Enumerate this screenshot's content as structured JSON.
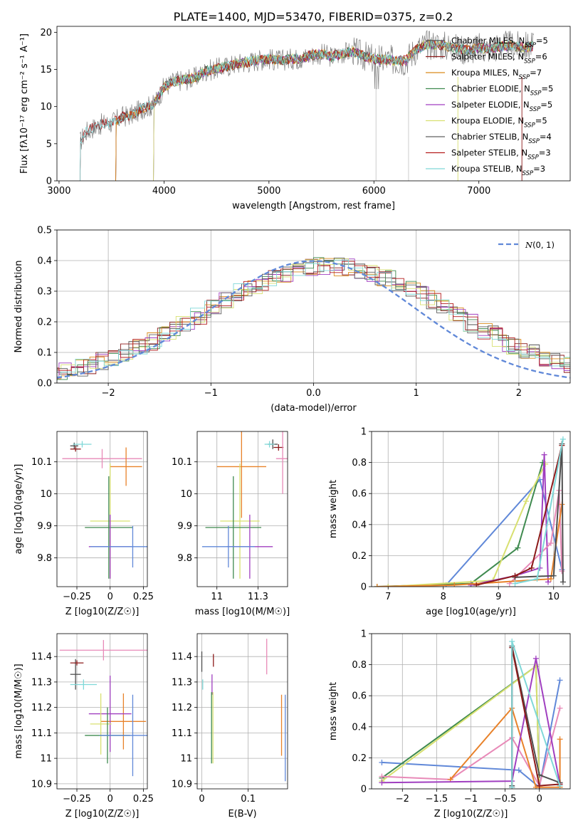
{
  "figure_title": "PLATE=1400, MJD=53470, FIBERID=0375, z=0.2",
  "colors": {
    "Chabrier MILES": "#4f4f4f",
    "Salpeter MILES": "#8c1a1a",
    "Kroupa MILES": "#d98a1a",
    "Chabrier ELODIE": "#3f8a4f",
    "Salpeter ELODIE": "#a03fc0",
    "Kroupa ELODIE": "#d8e070",
    "Chabrier STELIB": "#606060",
    "Salpeter STELIB": "#b51e1e",
    "Kroupa STELIB": "#7fd8d8",
    "blue": "#6088d8",
    "orange": "#e8822a",
    "pink": "#e88ab8",
    "spectrum": "#808080"
  },
  "chart_data": [
    {
      "id": "spectrum",
      "type": "line",
      "title": "PLATE=1400, MJD=53470, FIBERID=0375, z=0.2",
      "xlabel": "wavelength [Angstrom, rest frame]",
      "ylabel": "Flux [fλ10⁻¹⁷ erg cm⁻² s⁻¹ A⁻¹]",
      "xlim": [
        2980,
        7870
      ],
      "ylim": [
        0,
        20.8
      ],
      "xticks": [
        3000,
        4000,
        5000,
        6000,
        7000
      ],
      "yticks": [
        0,
        5,
        10,
        15,
        20
      ],
      "grid": false,
      "legend_position": "right",
      "model_continuum": [
        [
          3200,
          5.2
        ],
        [
          3250,
          6.5
        ],
        [
          3300,
          7.0
        ],
        [
          3400,
          7.6
        ],
        [
          3500,
          7.8
        ],
        [
          3600,
          8.6
        ],
        [
          3700,
          8.9
        ],
        [
          3800,
          9.8
        ],
        [
          3900,
          10.2
        ],
        [
          4000,
          12.6
        ],
        [
          4100,
          13.4
        ],
        [
          4200,
          13.6
        ],
        [
          4300,
          13.9
        ],
        [
          4400,
          14.8
        ],
        [
          4500,
          15.1
        ],
        [
          4600,
          15.4
        ],
        [
          4700,
          15.8
        ],
        [
          4800,
          16.0
        ],
        [
          4900,
          16.3
        ],
        [
          5000,
          16.4
        ],
        [
          5100,
          16.2
        ],
        [
          5200,
          16.4
        ],
        [
          5300,
          16.5
        ],
        [
          5400,
          16.9
        ],
        [
          5500,
          17.1
        ],
        [
          5600,
          16.7
        ],
        [
          5700,
          17.2
        ],
        [
          5800,
          17.4
        ],
        [
          5900,
          16.8
        ],
        [
          6000,
          16.4
        ],
        [
          6100,
          16.3
        ],
        [
          6200,
          16.2
        ],
        [
          6300,
          16.2
        ],
        [
          6400,
          17.7
        ],
        [
          6500,
          18.3
        ],
        [
          6600,
          18.4
        ],
        [
          6700,
          18.1
        ],
        [
          6800,
          17.8
        ],
        [
          6900,
          17.6
        ],
        [
          7000,
          17.9
        ],
        [
          7100,
          17.8
        ],
        [
          7200,
          18.1
        ],
        [
          7300,
          18.2
        ],
        [
          7400,
          18.0
        ],
        [
          7500,
          18.1
        ]
      ],
      "model_start": [
        {
          "name": "Chabrier MILES",
          "start": 3540
        },
        {
          "name": "Salpeter MILES",
          "start": 3540
        },
        {
          "name": "Kroupa MILES",
          "start": 3540
        },
        {
          "name": "Chabrier ELODIE",
          "start": 3900
        },
        {
          "name": "Salpeter ELODIE",
          "start": 3900
        },
        {
          "name": "Kroupa ELODIE",
          "start": 3900
        },
        {
          "name": "Chabrier STELIB",
          "start": 3200
        },
        {
          "name": "Salpeter STELIB",
          "start": 3200
        },
        {
          "name": "Kroupa STELIB",
          "start": 3200
        }
      ],
      "legend": [
        {
          "name": "Chabrier MILES",
          "label": "Chabrier MILES, N",
          "sub": "SSP",
          "tail": "=5"
        },
        {
          "name": "Salpeter MILES",
          "label": "Salpeter MILES, N",
          "sub": "SSP",
          "tail": "=6"
        },
        {
          "name": "Kroupa MILES",
          "label": "Kroupa MILES, N",
          "sub": "SSP",
          "tail": "=7"
        },
        {
          "name": "Chabrier ELODIE",
          "label": "Chabrier ELODIE, N",
          "sub": "SSP",
          "tail": "=5"
        },
        {
          "name": "Salpeter ELODIE",
          "label": "Salpeter ELODIE, N",
          "sub": "SSP",
          "tail": "=5"
        },
        {
          "name": "Kroupa ELODIE",
          "label": "Kroupa ELODIE, N",
          "sub": "SSP",
          "tail": "=5"
        },
        {
          "name": "Chabrier STELIB",
          "label": "Chabrier STELIB, N",
          "sub": "SSP",
          "tail": "=4"
        },
        {
          "name": "Salpeter STELIB",
          "label": "Salpeter STELIB, N",
          "sub": "SSP",
          "tail": "=3"
        },
        {
          "name": "Kroupa STELIB",
          "label": "Kroupa STELIB, N",
          "sub": "SSP",
          "tail": "=3"
        }
      ]
    },
    {
      "id": "residuals",
      "type": "line",
      "xlabel": "(data-model)/error",
      "ylabel": "Normed distribution",
      "xlim": [
        -2.5,
        2.5
      ],
      "ylim": [
        0,
        0.5
      ],
      "xticks": [
        -2,
        -1,
        0,
        1,
        2
      ],
      "yticks": [
        0.0,
        0.1,
        0.2,
        0.3,
        0.4,
        0.5
      ],
      "grid": true,
      "legend": [
        {
          "label": "N(0,1)",
          "name": "gaussian",
          "style": "dashed"
        }
      ],
      "legend_position": "top-right",
      "gaussian": {
        "mean": 0,
        "sigma": 1
      }
    },
    {
      "id": "age_vs_Z",
      "type": "scatter",
      "xlabel": "Z [log10(Z/Z☉)]",
      "ylabel": "age [log10(age/yr)]",
      "xlim": [
        -0.4,
        0.28
      ],
      "ylim": [
        9.71,
        10.195
      ],
      "xticks": [
        -0.25,
        0.0,
        0.25
      ],
      "yticks": [
        9.8,
        9.9,
        10.0,
        10.1
      ],
      "grid": true,
      "points": [
        {
          "name": "Chabrier MILES",
          "x": -0.27,
          "y": 10.15,
          "xerr": 0.03,
          "yerr": 0.01
        },
        {
          "name": "Salpeter MILES",
          "x": -0.26,
          "y": 10.14,
          "xerr": 0.04,
          "yerr": 0.008
        },
        {
          "name": "Kroupa STELIB",
          "x": -0.21,
          "y": 10.155,
          "xerr": 0.07,
          "yerr": 0.01
        },
        {
          "name": "pink",
          "x": -0.06,
          "y": 10.11,
          "xerr": 0.3,
          "yerr": 0.03
        },
        {
          "name": "orange",
          "x": 0.12,
          "y": 10.085,
          "xerr": 0.12,
          "yerr": 0.06
        },
        {
          "name": "Kroupa ELODIE",
          "x": 0.0,
          "y": 9.915,
          "xerr": 0.15,
          "yerr": 0.18
        },
        {
          "name": "Chabrier ELODIE",
          "x": -0.01,
          "y": 9.895,
          "xerr": 0.18,
          "yerr": 0.16
        },
        {
          "name": "Salpeter ELODIE",
          "x": 0.0,
          "y": 9.835,
          "xerr": 0.16,
          "yerr": 0.1
        },
        {
          "name": "blue",
          "x": 0.17,
          "y": 9.835,
          "xerr": 0.32,
          "yerr": 0.065
        }
      ]
    },
    {
      "id": "age_vs_mass",
      "type": "scatter",
      "xlabel": "mass [log10(M/M☉)]",
      "ylabel": "",
      "xlim": [
        10.88,
        11.43
      ],
      "ylim": [
        9.71,
        10.195
      ],
      "xticks": [
        11.0,
        11.25
      ],
      "yticks": [
        9.8,
        9.9,
        10.0,
        10.1
      ],
      "grid": true,
      "points": [
        {
          "name": "Chabrier MILES",
          "x": 11.34,
          "y": 10.155,
          "xerr": 0.03,
          "yerr": 0.015
        },
        {
          "name": "Salpeter MILES",
          "x": 11.375,
          "y": 10.145,
          "xerr": 0.03,
          "yerr": 0.01
        },
        {
          "name": "Kroupa STELIB",
          "x": 11.32,
          "y": 10.155,
          "xerr": 0.03,
          "yerr": 0.01
        },
        {
          "name": "pink",
          "x": 11.4,
          "y": 10.11,
          "xerr": 0.04,
          "yerr": 0.11
        },
        {
          "name": "orange",
          "x": 11.15,
          "y": 10.085,
          "xerr": 0.15,
          "yerr": 0.16
        },
        {
          "name": "Kroupa ELODIE",
          "x": 11.14,
          "y": 9.915,
          "xerr": 0.12,
          "yerr": 0.18
        },
        {
          "name": "Chabrier ELODIE",
          "x": 11.1,
          "y": 9.895,
          "xerr": 0.17,
          "yerr": 0.16
        },
        {
          "name": "Salpeter ELODIE",
          "x": 11.2,
          "y": 9.835,
          "xerr": 0.14,
          "yerr": 0.1
        },
        {
          "name": "blue",
          "x": 11.07,
          "y": 9.835,
          "xerr": 0.16,
          "yerr": 0.065
        }
      ]
    },
    {
      "id": "weights_vs_age",
      "type": "line",
      "xlabel": "age [log10(age/yr)]",
      "ylabel": "mass weight",
      "xlim": [
        6.7,
        10.3
      ],
      "ylim": [
        0,
        1.0
      ],
      "xticks": [
        7,
        8,
        9,
        10
      ],
      "yticks": [
        0.0,
        0.2,
        0.4,
        0.6,
        0.8,
        1.0
      ],
      "grid": true,
      "series": [
        {
          "name": "blue",
          "x": [
            7.0,
            8.05,
            9.75,
            10.15
          ],
          "y": [
            0.0,
            0.01,
            0.69,
            0.11
          ]
        },
        {
          "name": "Chabrier ELODIE",
          "x": [
            6.8,
            8.5,
            9.35,
            9.8
          ],
          "y": [
            0.0,
            0.02,
            0.25,
            0.8
          ]
        },
        {
          "name": "Kroupa ELODIE",
          "x": [
            7.0,
            8.9,
            9.5,
            9.85
          ],
          "y": [
            0.0,
            0.04,
            0.55,
            0.79
          ]
        },
        {
          "name": "Salpeter ELODIE",
          "x": [
            8.5,
            9.3,
            9.75,
            9.83,
            9.9
          ],
          "y": [
            0.01,
            0.07,
            0.12,
            0.85,
            0.03
          ]
        },
        {
          "name": "pink",
          "x": [
            9.2,
            9.95,
            10.1,
            10.15
          ],
          "y": [
            0.02,
            0.28,
            0.62,
            0.1
          ]
        },
        {
          "name": "orange",
          "x": [
            6.8,
            8.2,
            9.95,
            10.15
          ],
          "y": [
            0.0,
            0.01,
            0.05,
            0.53
          ]
        },
        {
          "name": "Chabrier MILES",
          "x": [
            9.3,
            10.0,
            10.15,
            10.17
          ],
          "y": [
            0.06,
            0.07,
            0.92,
            0.03
          ]
        },
        {
          "name": "Salpeter MILES",
          "x": [
            8.6,
            9.3,
            9.6,
            10.15
          ],
          "y": [
            0.01,
            0.07,
            0.12,
            0.91
          ]
        },
        {
          "name": "Kroupa STELIB",
          "x": [
            9.3,
            9.7,
            10.17
          ],
          "y": [
            0.02,
            0.05,
            0.95
          ]
        }
      ]
    },
    {
      "id": "mass_vs_Z",
      "type": "scatter",
      "xlabel": "Z [log10(Z/Z☉)]",
      "ylabel": "mass [log10(M/M☉)]",
      "xlim": [
        -0.4,
        0.28
      ],
      "ylim": [
        10.88,
        11.49
      ],
      "xticks": [
        -0.25,
        0.0,
        0.25
      ],
      "yticks": [
        10.9,
        11.0,
        11.1,
        11.2,
        11.3,
        11.4
      ],
      "grid": true,
      "points": [
        {
          "name": "Chabrier MILES",
          "x": -0.26,
          "y": 11.33,
          "xerr": 0.04,
          "yerr": 0.06
        },
        {
          "name": "Salpeter MILES",
          "x": -0.25,
          "y": 11.375,
          "xerr": 0.05,
          "yerr": 0.01
        },
        {
          "name": "Kroupa STELIB",
          "x": -0.2,
          "y": 11.29,
          "xerr": 0.1,
          "yerr": 0.02
        },
        {
          "name": "pink",
          "x": -0.05,
          "y": 11.425,
          "xerr": 0.33,
          "yerr": 0.04
        },
        {
          "name": "orange",
          "x": 0.1,
          "y": 11.145,
          "xerr": 0.17,
          "yerr": 0.11
        },
        {
          "name": "Salpeter ELODIE",
          "x": 0.0,
          "y": 11.175,
          "xerr": 0.16,
          "yerr": 0.15
        },
        {
          "name": "Kroupa ELODIE",
          "x": -0.07,
          "y": 11.135,
          "xerr": 0.08,
          "yerr": 0.12
        },
        {
          "name": "Chabrier ELODIE",
          "x": -0.02,
          "y": 11.09,
          "xerr": 0.17,
          "yerr": 0.11
        },
        {
          "name": "blue",
          "x": 0.17,
          "y": 11.09,
          "xerr": 0.25,
          "yerr": 0.16
        }
      ]
    },
    {
      "id": "mass_vs_EBV",
      "type": "scatter",
      "xlabel": "E(B-V)",
      "ylabel": "",
      "xlim": [
        -0.01,
        0.185
      ],
      "ylim": [
        10.88,
        11.49
      ],
      "xticks": [
        0.0,
        0.1
      ],
      "yticks": [
        10.9,
        11.0,
        11.1,
        11.2,
        11.3,
        11.4
      ],
      "grid": true,
      "points": [
        {
          "name": "Chabrier MILES",
          "x": 0.0,
          "y": 11.38,
          "yerr": 0.04
        },
        {
          "name": "Kroupa STELIB",
          "x": 0.002,
          "y": 11.29,
          "yerr": 0.02
        },
        {
          "name": "Salpeter MILES",
          "x": 0.025,
          "y": 11.385,
          "yerr": 0.025
        },
        {
          "name": "Salpeter ELODIE",
          "x": 0.022,
          "y": 11.29,
          "yerr": 0.04
        },
        {
          "name": "Chabrier ELODIE",
          "x": 0.021,
          "y": 11.12,
          "yerr": 0.14
        },
        {
          "name": "Kroupa ELODIE",
          "x": 0.024,
          "y": 11.12,
          "yerr": 0.14
        },
        {
          "name": "pink",
          "x": 0.14,
          "y": 11.4,
          "yerr": 0.07
        },
        {
          "name": "orange",
          "x": 0.172,
          "y": 11.13,
          "yerr": 0.12
        },
        {
          "name": "blue",
          "x": 0.18,
          "y": 11.08,
          "yerr": 0.17
        }
      ]
    },
    {
      "id": "weights_vs_Z",
      "type": "line",
      "xlabel": "Z [log10(Z/Z☉)]",
      "ylabel": "mass weight",
      "xlim": [
        -2.45,
        0.45
      ],
      "ylim": [
        0,
        1.0
      ],
      "xticks": [
        -2.0,
        -1.5,
        -1.0,
        -0.5,
        0.0
      ],
      "yticks": [
        0.0,
        0.2,
        0.4,
        0.6,
        0.8,
        1.0
      ],
      "grid": true,
      "series": [
        {
          "name": "blue",
          "x": [
            -2.3,
            -0.3,
            0.0,
            0.3
          ],
          "y": [
            0.17,
            0.12,
            0.01,
            0.7
          ]
        },
        {
          "name": "Chabrier ELODIE",
          "x": [
            -2.3,
            -0.05,
            0.0
          ],
          "y": [
            0.07,
            0.79,
            0.01
          ]
        },
        {
          "name": "Kroupa ELODIE",
          "x": [
            -2.3,
            -0.05,
            0.0
          ],
          "y": [
            0.05,
            0.79,
            0.02
          ]
        },
        {
          "name": "pink",
          "x": [
            -2.3,
            -1.3,
            -0.4,
            0.0,
            0.3
          ],
          "y": [
            0.08,
            0.06,
            0.33,
            0.02,
            0.52
          ]
        },
        {
          "name": "orange",
          "x": [
            -1.3,
            -0.4,
            -0.05,
            0.3,
            0.3
          ],
          "y": [
            0.06,
            0.52,
            0.01,
            0.01,
            0.32
          ]
        },
        {
          "name": "Salpeter ELODIE",
          "x": [
            -2.3,
            -0.4,
            -0.05,
            0.3
          ],
          "y": [
            0.04,
            0.05,
            0.84,
            0.03
          ]
        },
        {
          "name": "Chabrier MILES",
          "x": [
            -0.4,
            -0.4,
            0.0,
            0.3
          ],
          "y": [
            0.02,
            0.92,
            0.09,
            0.04
          ]
        },
        {
          "name": "Salpeter MILES",
          "x": [
            -0.4,
            -0.4,
            0.0,
            0.3
          ],
          "y": [
            0.01,
            0.91,
            0.02,
            0.03
          ]
        },
        {
          "name": "Kroupa STELIB",
          "x": [
            -0.4,
            -0.4,
            0.3
          ],
          "y": [
            0.01,
            0.95,
            0.02
          ]
        }
      ]
    }
  ]
}
